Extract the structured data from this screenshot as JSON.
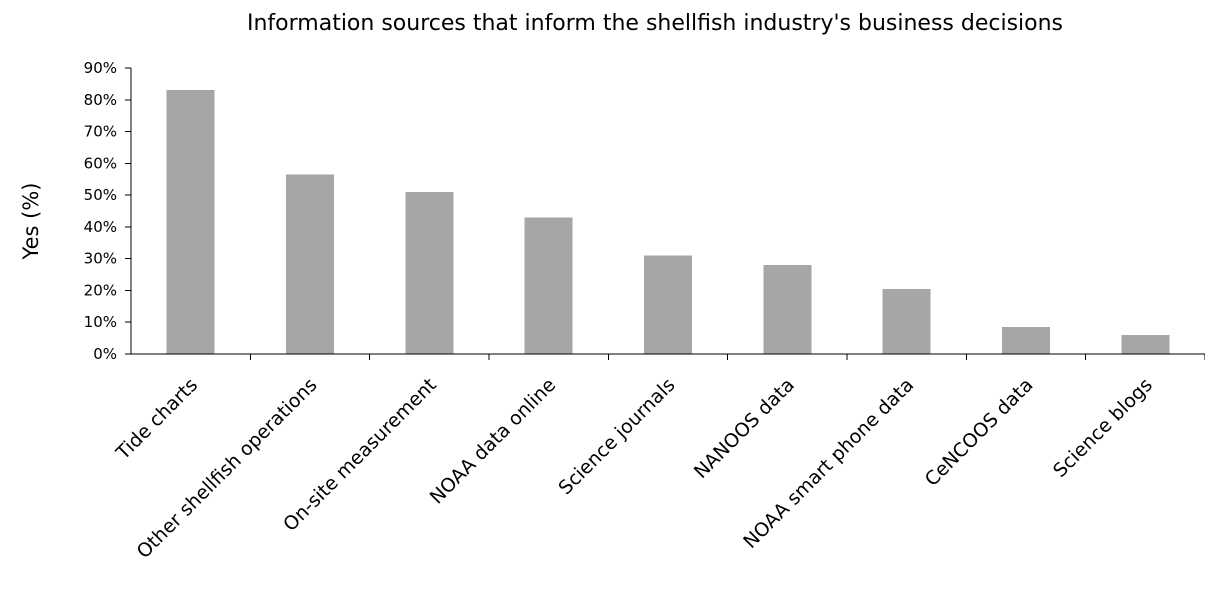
{
  "chart_data": {
    "type": "bar",
    "title": "Information sources that inform the shellfish industry's business decisions",
    "xlabel": "",
    "ylabel": "Yes (%)",
    "ylim": [
      0,
      90
    ],
    "yticks": [
      0,
      10,
      20,
      30,
      40,
      50,
      60,
      70,
      80,
      90
    ],
    "ytick_labels": [
      "0%",
      "10%",
      "20%",
      "30%",
      "40%",
      "50%",
      "60%",
      "70%",
      "80%",
      "90%"
    ],
    "categories": [
      "Tide charts",
      "Other shellfish operations",
      "On-site measurement",
      "NOAA data online",
      "Science journals",
      "NANOOS data",
      "NOAA smart phone data",
      "CeNCOOS data",
      "Science blogs"
    ],
    "values": [
      83,
      56.5,
      51,
      43,
      31,
      28,
      20.5,
      8.5,
      6
    ],
    "bar_color": "#a6a6a6",
    "grid": false,
    "legend": "none"
  }
}
